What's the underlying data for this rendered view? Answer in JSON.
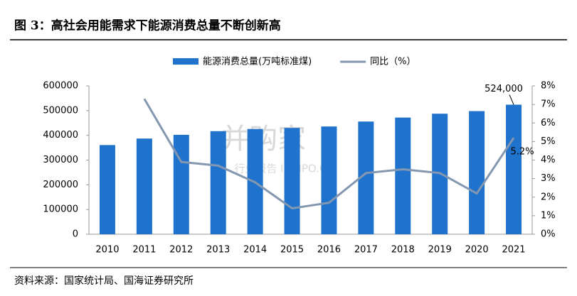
{
  "figure_title": "图 3：高社会用能需求下能源消费总量不断创新高",
  "source": "资料来源：国家统计局、国海证券研究所",
  "watermark": {
    "brand": "并购家",
    "sub": "行业报告 IPOIPO.CN"
  },
  "chart_data": {
    "type": "bar-line",
    "categories": [
      "2010",
      "2011",
      "2012",
      "2013",
      "2014",
      "2015",
      "2016",
      "2017",
      "2018",
      "2019",
      "2020",
      "2021"
    ],
    "series": [
      {
        "name": "能源消费总量(万吨标准煤)",
        "type": "bar",
        "color": "#1f73cc",
        "values": [
          360648,
          387043,
          402138,
          416913,
          425806,
          429905,
          435819,
          455827,
          471925,
          487488,
          498000,
          524000
        ],
        "value_labels": [
          null,
          null,
          null,
          null,
          null,
          null,
          null,
          null,
          null,
          null,
          null,
          "524,000"
        ]
      },
      {
        "name": "同比（%）",
        "type": "line",
        "axis": "y2",
        "color": "#8497b0",
        "values": [
          null,
          7.3,
          3.9,
          3.7,
          2.8,
          1.4,
          1.7,
          3.3,
          3.5,
          3.3,
          2.2,
          5.2
        ],
        "value_labels": [
          null,
          null,
          null,
          null,
          null,
          null,
          null,
          null,
          null,
          null,
          null,
          "5.2%"
        ]
      }
    ],
    "ylim": [
      0,
      600000
    ],
    "yticks": [
      0,
      100000,
      200000,
      300000,
      400000,
      500000,
      600000
    ],
    "y2lim": [
      0,
      8
    ],
    "y2ticks": [
      {
        "value": 0,
        "label": "0%"
      },
      {
        "value": 1,
        "label": "1%"
      },
      {
        "value": 2,
        "label": "2%"
      },
      {
        "value": 3,
        "label": "3%"
      },
      {
        "value": 4,
        "label": "4%"
      },
      {
        "value": 5,
        "label": "5%"
      },
      {
        "value": 6,
        "label": "6%"
      },
      {
        "value": 7,
        "label": "7%"
      },
      {
        "value": 8,
        "label": "8%"
      }
    ],
    "legend": "top"
  }
}
